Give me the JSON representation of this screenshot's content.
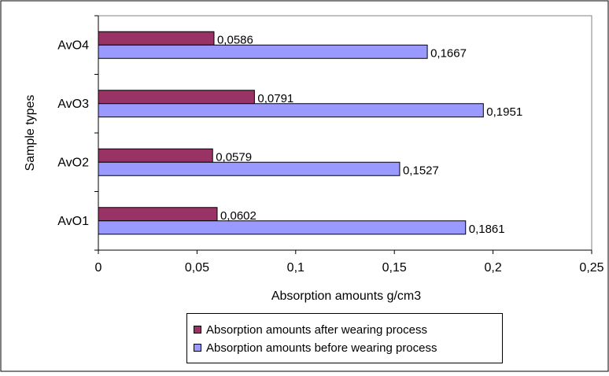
{
  "chart_data": {
    "type": "bar",
    "orientation": "horizontal",
    "categories": [
      "AvO1",
      "AvO2",
      "AvO3",
      "AvO4"
    ],
    "series": [
      {
        "name": "Absorption amounts after wearing process",
        "color": "#993366",
        "values": [
          0.0602,
          0.0579,
          0.0791,
          0.0586
        ],
        "labels": [
          "0,0602",
          "0,0579",
          "0,0791",
          "0,0586"
        ]
      },
      {
        "name": "Absorption amounts before wearing process",
        "color": "#9999ff",
        "values": [
          0.1861,
          0.1527,
          0.1951,
          0.1667
        ],
        "labels": [
          "0,1861",
          "0,1527",
          "0,1951",
          "0,1667"
        ]
      }
    ],
    "xlabel": "Absorption amounts g/cm3",
    "ylabel": "Sample types",
    "xlim": [
      0,
      0.25
    ],
    "xticks": [
      0,
      0.05,
      0.1,
      0.15,
      0.2,
      0.25
    ],
    "xtick_labels": [
      "0",
      "0,05",
      "0,1",
      "0,15",
      "0,2",
      "0,25"
    ],
    "grid": false,
    "legend_position": "bottom"
  }
}
